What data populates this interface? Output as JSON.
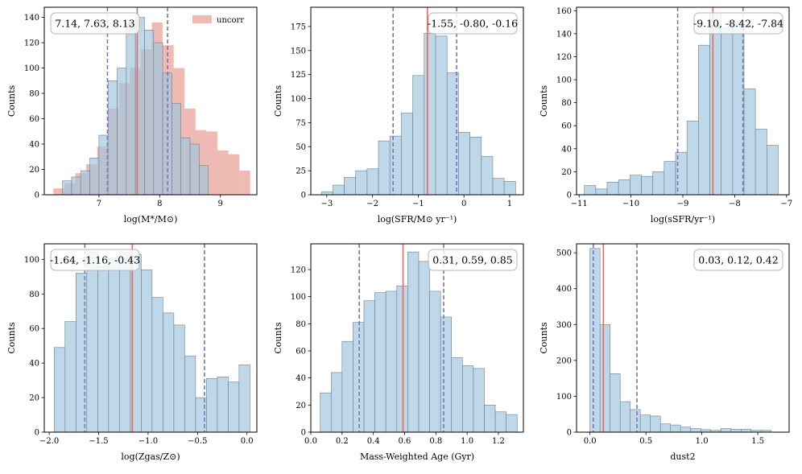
{
  "colors": {
    "hist": "#9fc5de",
    "hist_edge": "#6e7f8a",
    "uncorr": "#e58c82",
    "median": "#e8695a",
    "percentile": "#7a74b8"
  },
  "chart_data": [
    {
      "type": "bar",
      "xlabel": "log(M*/M⊙)",
      "ylabel": "Counts",
      "xlim": [
        6.1,
        9.6
      ],
      "ylim": [
        0,
        148
      ],
      "xticks": [
        7,
        8,
        9
      ],
      "xtick_labels": [
        "7",
        "8",
        "9"
      ],
      "yticks": [
        0,
        20,
        40,
        60,
        80,
        100,
        120,
        140
      ],
      "ytick_labels": [
        "0",
        "20",
        "40",
        "60",
        "80",
        "100",
        "120",
        "140"
      ],
      "stats_text": "7.14, 7.63, 8.13",
      "median": 7.63,
      "percentiles": [
        7.14,
        8.13
      ],
      "legend": "uncorr",
      "series": [
        {
          "role": "uncorr",
          "name": "uncorr",
          "edges": [
            6.25,
            6.43,
            6.61,
            6.79,
            6.97,
            7.15,
            7.33,
            7.51,
            7.69,
            7.87,
            8.05,
            8.23,
            8.41,
            8.59,
            8.77,
            8.95,
            9.13,
            9.31,
            9.49
          ],
          "values": [
            5,
            9,
            17,
            24,
            38,
            68,
            88,
            100,
            115,
            136,
            118,
            100,
            68,
            51,
            50,
            35,
            32,
            19
          ]
        },
        {
          "role": "main",
          "edges": [
            6.4,
            6.55,
            6.7,
            6.85,
            7.0,
            7.15,
            7.3,
            7.45,
            7.6,
            7.75,
            7.9,
            8.05,
            8.2,
            8.35,
            8.5,
            8.65,
            8.8
          ],
          "values": [
            11,
            14,
            19,
            29,
            47,
            90,
            100,
            135,
            140,
            130,
            120,
            96,
            72,
            45,
            40,
            23
          ]
        }
      ]
    },
    {
      "type": "bar",
      "xlabel": "log(SFR/M⊙ yr⁻¹)",
      "ylabel": "Counts",
      "xlim": [
        -3.35,
        1.3
      ],
      "ylim": [
        0,
        195
      ],
      "xticks": [
        -3,
        -2,
        -1,
        0,
        1
      ],
      "xtick_labels": [
        "−3",
        "−2",
        "−1",
        "0",
        "1"
      ],
      "yticks": [
        0,
        25,
        50,
        75,
        100,
        125,
        150,
        175
      ],
      "ytick_labels": [
        "0",
        "25",
        "50",
        "75",
        "100",
        "125",
        "150",
        "175"
      ],
      "stats_text": "-1.55, -0.80, -0.16",
      "median": -0.8,
      "percentiles": [
        -1.55,
        -0.16
      ],
      "series": [
        {
          "role": "main",
          "edges": [
            -3.12,
            -2.87,
            -2.62,
            -2.37,
            -2.12,
            -1.87,
            -1.62,
            -1.37,
            -1.12,
            -0.87,
            -0.62,
            -0.37,
            -0.12,
            0.13,
            0.38,
            0.63,
            0.88,
            1.13
          ],
          "values": [
            3,
            10,
            18,
            25,
            27,
            56,
            61,
            85,
            124,
            168,
            165,
            127,
            65,
            60,
            40,
            17,
            14,
            3
          ]
        }
      ]
    },
    {
      "type": "bar",
      "xlabel": "log(sSFR/yr⁻¹)",
      "ylabel": "Counts",
      "xlim": [
        -11.05,
        -6.95
      ],
      "ylim": [
        0,
        163
      ],
      "xticks": [
        -11,
        -10,
        -9,
        -8,
        -7
      ],
      "xtick_labels": [
        "−11",
        "−10",
        "−9",
        "−8",
        "−7"
      ],
      "yticks": [
        0,
        20,
        40,
        60,
        80,
        100,
        120,
        140,
        160
      ],
      "ytick_labels": [
        "0",
        "20",
        "40",
        "60",
        "80",
        "100",
        "120",
        "140",
        "160"
      ],
      "stats_text": "-9.10, -8.42, -7.84",
      "median": -8.42,
      "percentiles": [
        -9.1,
        -7.84
      ],
      "series": [
        {
          "role": "main",
          "edges": [
            -10.9,
            -10.68,
            -10.46,
            -10.24,
            -10.02,
            -9.8,
            -9.58,
            -9.36,
            -9.14,
            -8.92,
            -8.7,
            -8.48,
            -8.26,
            -8.04,
            -7.82,
            -7.6,
            -7.38,
            -7.16
          ],
          "values": [
            8,
            5,
            11,
            13,
            17,
            16,
            20,
            29,
            37,
            64,
            130,
            158,
            145,
            150,
            92,
            57,
            43,
            24
          ]
        }
      ]
    },
    {
      "type": "bar",
      "xlabel": "log(Zgas/Z⊙)",
      "ylabel": "Counts",
      "xlim": [
        -2.05,
        0.1
      ],
      "ylim": [
        0,
        109
      ],
      "xticks": [
        -2.0,
        -1.5,
        -1.0,
        -0.5,
        0.0
      ],
      "xtick_labels": [
        "−2.0",
        "−1.5",
        "−1.0",
        "−0.5",
        "0.0"
      ],
      "yticks": [
        0,
        20,
        40,
        60,
        80,
        100
      ],
      "ytick_labels": [
        "0",
        "20",
        "40",
        "60",
        "80",
        "100"
      ],
      "stats_text": "-1.64, -1.16, -0.43",
      "median": -1.16,
      "percentiles": [
        -1.64,
        -0.43
      ],
      "series": [
        {
          "role": "main",
          "edges": [
            -1.95,
            -1.84,
            -1.73,
            -1.62,
            -1.51,
            -1.4,
            -1.29,
            -1.18,
            -1.07,
            -0.96,
            -0.85,
            -0.74,
            -0.63,
            -0.52,
            -0.41,
            -0.3,
            -0.19,
            -0.08,
            0.03
          ],
          "values": [
            49,
            64,
            92,
            104,
            96,
            101,
            104,
            103,
            94,
            78,
            69,
            62,
            44,
            20,
            31,
            32,
            29,
            39
          ]
        }
      ]
    },
    {
      "type": "bar",
      "xlabel": "Mass-Weighted Age (Gyr)",
      "ylabel": "Counts",
      "xlim": [
        0.0,
        1.36
      ],
      "ylim": [
        0,
        139
      ],
      "xticks": [
        0.0,
        0.2,
        0.4,
        0.6,
        0.8,
        1.0,
        1.2
      ],
      "xtick_labels": [
        "0.0",
        "0.2",
        "0.4",
        "0.6",
        "0.8",
        "1.0",
        "1.2"
      ],
      "yticks": [
        0,
        20,
        40,
        60,
        80,
        100,
        120
      ],
      "ytick_labels": [
        "0",
        "20",
        "40",
        "60",
        "80",
        "100",
        "120"
      ],
      "stats_text": "0.31, 0.59, 0.85",
      "median": 0.59,
      "percentiles": [
        0.31,
        0.85
      ],
      "series": [
        {
          "role": "main",
          "edges": [
            0.06,
            0.13,
            0.2,
            0.27,
            0.34,
            0.41,
            0.48,
            0.55,
            0.62,
            0.69,
            0.76,
            0.83,
            0.9,
            0.97,
            1.04,
            1.11,
            1.18,
            1.25,
            1.32
          ],
          "values": [
            29,
            44,
            67,
            81,
            97,
            103,
            104,
            108,
            133,
            126,
            104,
            85,
            55,
            49,
            47,
            20,
            15,
            13
          ]
        }
      ]
    },
    {
      "type": "bar",
      "xlabel": "dust2",
      "ylabel": "Counts",
      "xlim": [
        -0.12,
        1.78
      ],
      "ylim": [
        0,
        525
      ],
      "xticks": [
        0.0,
        0.5,
        1.0,
        1.5
      ],
      "xtick_labels": [
        "0.0",
        "0.5",
        "1.0",
        "1.5"
      ],
      "yticks": [
        0,
        100,
        200,
        300,
        400,
        500
      ],
      "ytick_labels": [
        "0",
        "100",
        "200",
        "300",
        "400",
        "500"
      ],
      "stats_text": "0.03, 0.12, 0.42",
      "median": 0.12,
      "percentiles": [
        0.03,
        0.42
      ],
      "series": [
        {
          "role": "main",
          "edges": [
            0.0,
            0.09,
            0.18,
            0.27,
            0.36,
            0.45,
            0.54,
            0.63,
            0.72,
            0.81,
            0.9,
            0.99,
            1.08,
            1.17,
            1.26,
            1.35,
            1.44,
            1.53,
            1.62
          ],
          "values": [
            512,
            300,
            163,
            85,
            63,
            48,
            45,
            23,
            20,
            14,
            10,
            7,
            5,
            10,
            8,
            8,
            5,
            5
          ]
        }
      ]
    }
  ]
}
